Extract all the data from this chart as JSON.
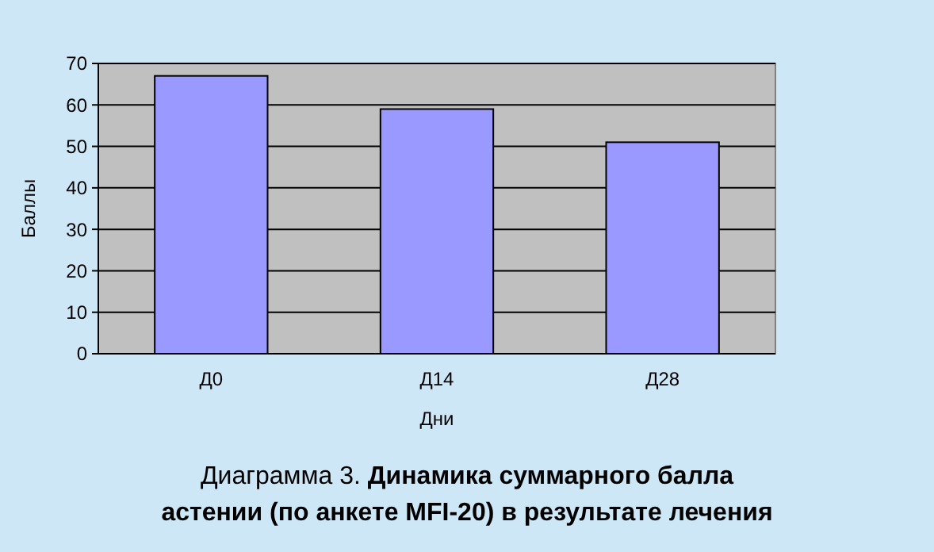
{
  "chart_data": {
    "type": "bar",
    "title": "Динамика суммарного балла астении (по анкете MFI-20) в результате лечения",
    "annotations": [
      "Диаграмма 3."
    ],
    "xlabel": "Дни",
    "ylabel": "Баллы",
    "categories": [
      "Д0",
      "Д14",
      "Д28"
    ],
    "values": [
      67,
      59,
      51
    ],
    "color": "#9999ff",
    "ylim": [
      0,
      70
    ],
    "yticks": [
      0,
      10,
      20,
      30,
      40,
      50,
      60,
      70
    ],
    "grid": "y"
  }
}
